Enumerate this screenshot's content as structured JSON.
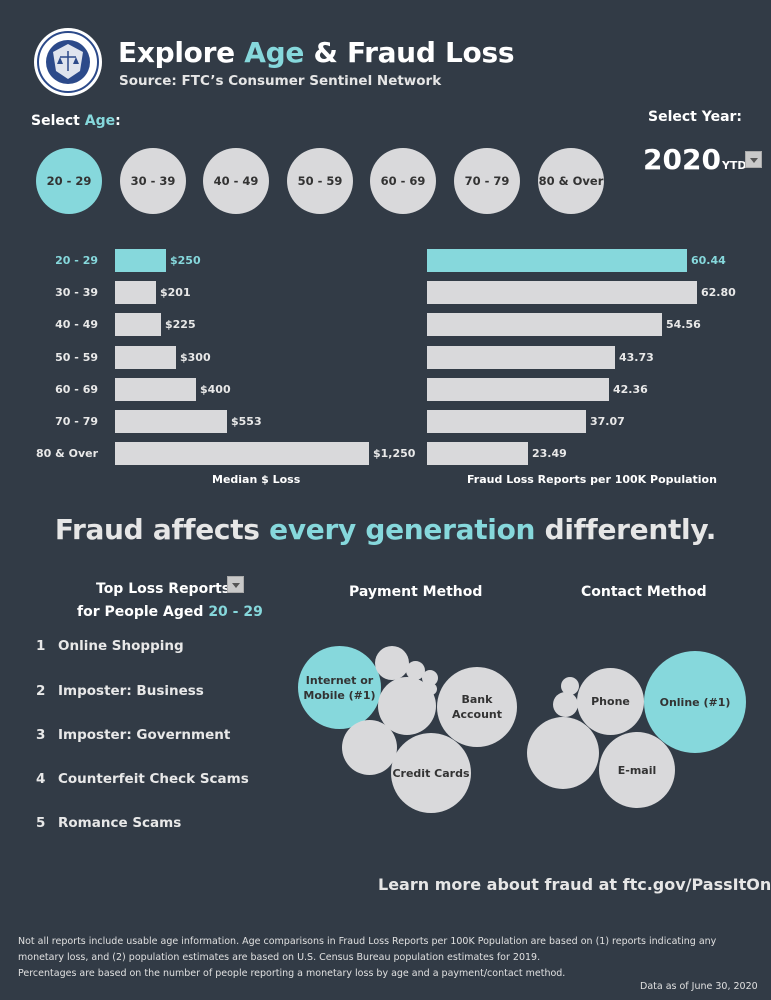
{
  "header": {
    "title_part1": "Explore ",
    "title_highlight": "Age",
    "title_part2": " & Fraud Loss",
    "subtitle": "Source: FTC’s Consumer Sentinel Network"
  },
  "age_selector": {
    "label_prefix": "Select ",
    "label_highlight": "Age",
    "label_suffix": ":",
    "options": [
      "20 - 29",
      "30 - 39",
      "40 - 49",
      "50 - 59",
      "60 - 69",
      "70 - 79",
      "80 & Over"
    ],
    "selected": "20 - 29"
  },
  "year_selector": {
    "label": "Select Year:",
    "value": "2020",
    "suffix": "YTD"
  },
  "colors": {
    "accent": "#86d8dc",
    "background": "#323b46",
    "bar": "#d9d9db"
  },
  "chart_data": [
    {
      "type": "bar",
      "orientation": "horizontal",
      "categories": [
        "20 - 29",
        "30 - 39",
        "40 - 49",
        "50 - 59",
        "60 - 69",
        "70 - 79",
        "80 & Over"
      ],
      "values": [
        250,
        201,
        225,
        300,
        400,
        553,
        1250
      ],
      "value_labels": [
        "$250",
        "$201",
        "$225",
        "$300",
        "$400",
        "$553",
        "$1,250"
      ],
      "xlabel": "Median $ Loss",
      "xlim": [
        0,
        1250
      ],
      "highlight": "20 - 29"
    },
    {
      "type": "bar",
      "orientation": "horizontal",
      "categories": [
        "20 - 29",
        "30 - 39",
        "40 - 49",
        "50 - 59",
        "60 - 69",
        "70 - 79",
        "80 & Over"
      ],
      "values": [
        60.44,
        62.8,
        54.56,
        43.73,
        42.36,
        37.07,
        23.49
      ],
      "value_labels": [
        "60.44",
        "62.80",
        "54.56",
        "43.73",
        "42.36",
        "37.07",
        "23.49"
      ],
      "xlabel": "Fraud Loss Reports per 100K Population",
      "xlim": [
        0,
        62.8
      ],
      "highlight": "20 - 29"
    }
  ],
  "tagline": {
    "part1": "Fraud affects ",
    "highlight": "every generation",
    "part2": " differently."
  },
  "top_loss": {
    "title_line1": "Top Loss Reports",
    "title_line2_prefix": "for People Aged ",
    "title_line2_highlight": "20 - 29",
    "items": [
      {
        "rank": "1",
        "label": "Online Shopping"
      },
      {
        "rank": "2",
        "label": "Imposter: Business"
      },
      {
        "rank": "3",
        "label": "Imposter: Government"
      },
      {
        "rank": "4",
        "label": "Counterfeit Check Scams"
      },
      {
        "rank": "5",
        "label": "Romance Scams"
      }
    ]
  },
  "payment_method": {
    "title": "Payment Method",
    "labels": {
      "internet_line1": "Internet or",
      "internet_line2": "Mobile (#1)",
      "bank_line1": "Bank",
      "bank_line2": "Account",
      "credit": "Credit Cards"
    }
  },
  "contact_method": {
    "title": "Contact Method",
    "labels": {
      "online": "Online (#1)",
      "phone": "Phone",
      "email": "E-mail"
    }
  },
  "footer": {
    "learn_more": "Learn more about fraud at ftc.gov/PassItOn",
    "note_line1": "Not all reports include usable age information.  Age comparisons in Fraud Loss Reports per 100K Population are based on (1) reports indicating any",
    "note_line2": "monetary loss, and (2) population estimates are based on U.S. Census Bureau population estimates for 2019.",
    "note_line3": "Percentages are based on the number of people reporting a monetary loss by age and a payment/contact method.",
    "data_as_of": "Data as of June 30, 2020"
  }
}
